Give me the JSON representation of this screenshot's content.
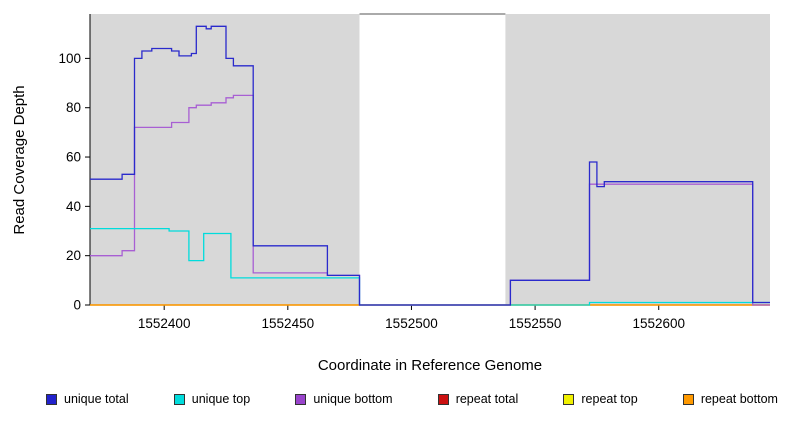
{
  "figure": {
    "xlabel": "Coordinate in Reference Genome",
    "ylabel": "Read Coverage Depth"
  },
  "legend": {
    "items": [
      {
        "label": "unique total",
        "color": "#2222cc"
      },
      {
        "label": "unique top",
        "color": "#00dcdc"
      },
      {
        "label": "unique bottom",
        "color": "#9944cc"
      },
      {
        "label": "repeat total",
        "color": "#cc1111"
      },
      {
        "label": "repeat top",
        "color": "#f0f000"
      },
      {
        "label": "repeat bottom",
        "color": "#ff9900"
      }
    ]
  },
  "chart_data": {
    "type": "line",
    "title": "",
    "xlabel": "Coordinate in Reference Genome",
    "ylabel": "Read Coverage Depth",
    "xlim": [
      1552370,
      1552645
    ],
    "ylim": [
      0,
      118
    ],
    "x_ticks": [
      1552400,
      1552450,
      1552500,
      1552550,
      1552600
    ],
    "y_ticks": [
      0,
      20,
      40,
      60,
      80,
      100
    ],
    "grid": false,
    "legend_position": "bottom",
    "background_regions": [
      {
        "x0": 1552370,
        "x1": 1552479,
        "color": "#d8d8d8",
        "top_border": false
      },
      {
        "x0": 1552479,
        "x1": 1552538,
        "color": "#ffffff",
        "top_border": true
      },
      {
        "x0": 1552538,
        "x1": 1552645,
        "color": "#d8d8d8",
        "top_border": false
      }
    ],
    "series": [
      {
        "name": "repeat total",
        "color": "#cc1111",
        "points": [
          [
            1552370,
            0
          ],
          [
            1552645,
            0
          ]
        ]
      },
      {
        "name": "repeat top",
        "color": "#f0f000",
        "points": [
          [
            1552370,
            0
          ],
          [
            1552645,
            0
          ]
        ]
      },
      {
        "name": "repeat bottom",
        "color": "#ff9900",
        "points": [
          [
            1552370,
            0
          ],
          [
            1552645,
            0
          ]
        ]
      },
      {
        "name": "unique bottom",
        "color": "#a85fd3",
        "points": [
          [
            1552370,
            20
          ],
          [
            1552383,
            20
          ],
          [
            1552383,
            22
          ],
          [
            1552388,
            22
          ],
          [
            1552388,
            72
          ],
          [
            1552403,
            72
          ],
          [
            1552403,
            74
          ],
          [
            1552410,
            74
          ],
          [
            1552410,
            80
          ],
          [
            1552413,
            80
          ],
          [
            1552413,
            81
          ],
          [
            1552419,
            81
          ],
          [
            1552419,
            82
          ],
          [
            1552425,
            82
          ],
          [
            1552425,
            84
          ],
          [
            1552428,
            84
          ],
          [
            1552428,
            85
          ],
          [
            1552436,
            85
          ],
          [
            1552436,
            13
          ],
          [
            1552466,
            13
          ],
          [
            1552466,
            12
          ],
          [
            1552479,
            12
          ],
          [
            1552479,
            0
          ],
          [
            1552540,
            0
          ],
          [
            1552540,
            10
          ],
          [
            1552572,
            10
          ],
          [
            1552572,
            49
          ],
          [
            1552638,
            49
          ],
          [
            1552638,
            0
          ],
          [
            1552645,
            0
          ]
        ]
      },
      {
        "name": "unique top",
        "color": "#00dcdc",
        "points": [
          [
            1552370,
            31
          ],
          [
            1552402,
            31
          ],
          [
            1552402,
            30
          ],
          [
            1552410,
            30
          ],
          [
            1552410,
            18
          ],
          [
            1552416,
            18
          ],
          [
            1552416,
            29
          ],
          [
            1552427,
            29
          ],
          [
            1552427,
            11
          ],
          [
            1552479,
            11
          ],
          [
            1552479,
            0
          ],
          [
            1552572,
            0
          ],
          [
            1552572,
            1
          ],
          [
            1552645,
            1
          ]
        ]
      },
      {
        "name": "unique total",
        "color": "#2a2acc",
        "points": [
          [
            1552370,
            51
          ],
          [
            1552383,
            51
          ],
          [
            1552383,
            53
          ],
          [
            1552388,
            53
          ],
          [
            1552388,
            100
          ],
          [
            1552391,
            100
          ],
          [
            1552391,
            103
          ],
          [
            1552395,
            103
          ],
          [
            1552395,
            104
          ],
          [
            1552403,
            104
          ],
          [
            1552403,
            103
          ],
          [
            1552406,
            103
          ],
          [
            1552406,
            101
          ],
          [
            1552411,
            101
          ],
          [
            1552411,
            102
          ],
          [
            1552413,
            102
          ],
          [
            1552413,
            113
          ],
          [
            1552417,
            113
          ],
          [
            1552417,
            112
          ],
          [
            1552419,
            112
          ],
          [
            1552419,
            113
          ],
          [
            1552425,
            113
          ],
          [
            1552425,
            100
          ],
          [
            1552428,
            100
          ],
          [
            1552428,
            97
          ],
          [
            1552436,
            97
          ],
          [
            1552436,
            24
          ],
          [
            1552466,
            24
          ],
          [
            1552466,
            12
          ],
          [
            1552479,
            12
          ],
          [
            1552479,
            0
          ],
          [
            1552540,
            0
          ],
          [
            1552540,
            10
          ],
          [
            1552572,
            10
          ],
          [
            1552572,
            58
          ],
          [
            1552575,
            58
          ],
          [
            1552575,
            48
          ],
          [
            1552578,
            48
          ],
          [
            1552578,
            50
          ],
          [
            1552638,
            50
          ],
          [
            1552638,
            1
          ],
          [
            1552645,
            1
          ]
        ]
      }
    ]
  }
}
